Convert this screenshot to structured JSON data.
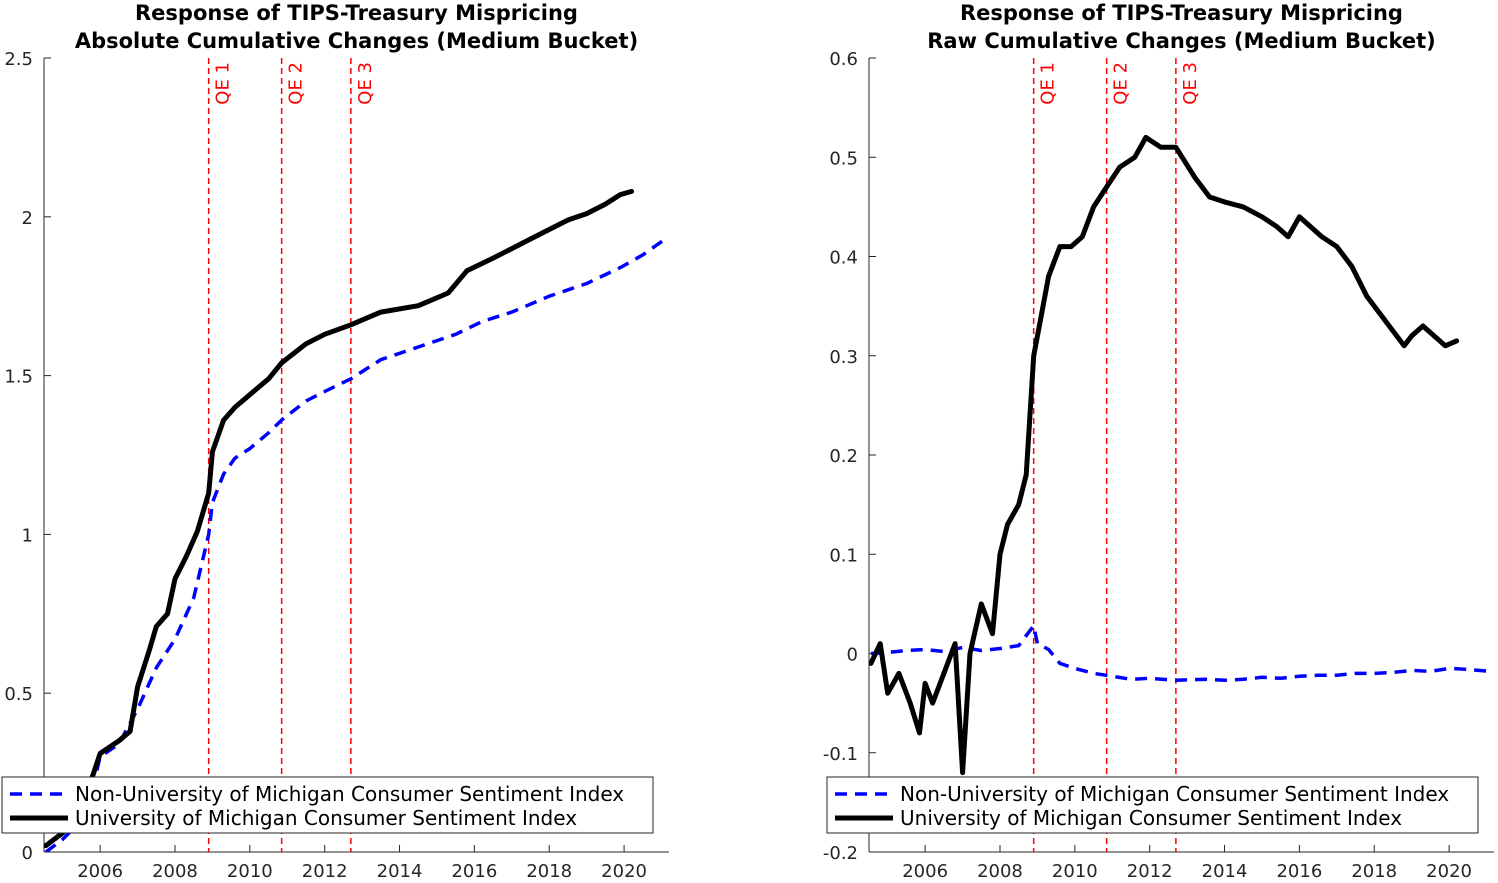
{
  "chart_data": [
    {
      "type": "line",
      "title": [
        "Response of TIPS-Treasury Mispricing",
        "Absolute Cumulative Changes (Medium Bucket)"
      ],
      "xlabel": "",
      "ylabel": "",
      "xlim": [
        2004.5,
        2021.2
      ],
      "ylim": [
        0,
        2.5
      ],
      "xticks": [
        2006,
        2008,
        2010,
        2012,
        2014,
        2016,
        2018,
        2020
      ],
      "yticks": [
        0,
        0.5,
        1,
        1.5,
        2,
        2.5
      ],
      "ytick_labels": [
        "0",
        "0.5",
        "1",
        "1.5",
        "2",
        "2.5"
      ],
      "grid": false,
      "legend": "bottom-left",
      "vlines": [
        {
          "x": 2008.9,
          "label": "QE 1"
        },
        {
          "x": 2010.85,
          "label": "QE 2"
        },
        {
          "x": 2012.7,
          "label": "QE 3"
        }
      ],
      "series": [
        {
          "name": "Non-University of Michigan Consumer Sentiment Index",
          "style": "dashed",
          "color": "#0000ff",
          "x": [
            2004.55,
            2005.0,
            2005.5,
            2005.8,
            2006.0,
            2006.5,
            2007.0,
            2007.5,
            2008.0,
            2008.5,
            2008.9,
            2009.0,
            2009.3,
            2009.6,
            2010.0,
            2010.5,
            2010.85,
            2011.5,
            2012.0,
            2012.7,
            2013.5,
            2014.5,
            2015.5,
            2016.2,
            2017.0,
            2018.0,
            2019.0,
            2019.9,
            2020.5,
            2021.1
          ],
          "y": [
            0.0,
            0.04,
            0.1,
            0.2,
            0.3,
            0.34,
            0.45,
            0.58,
            0.67,
            0.8,
            1.0,
            1.1,
            1.19,
            1.24,
            1.27,
            1.32,
            1.36,
            1.42,
            1.45,
            1.49,
            1.55,
            1.59,
            1.63,
            1.67,
            1.7,
            1.75,
            1.79,
            1.84,
            1.88,
            1.93
          ]
        },
        {
          "name": "University of Michigan Consumer Sentiment Index",
          "style": "solid",
          "color": "#000000",
          "x": [
            2004.55,
            2005.0,
            2005.5,
            2005.8,
            2006.0,
            2006.5,
            2006.8,
            2007.0,
            2007.3,
            2007.5,
            2007.8,
            2008.0,
            2008.3,
            2008.6,
            2008.9,
            2009.0,
            2009.3,
            2009.6,
            2010.0,
            2010.5,
            2010.85,
            2011.5,
            2012.0,
            2012.7,
            2013.5,
            2014.5,
            2015.3,
            2015.8,
            2016.5,
            2017.0,
            2017.5,
            2018.0,
            2018.5,
            2019.0,
            2019.5,
            2019.9,
            2020.2
          ],
          "y": [
            0.02,
            0.06,
            0.16,
            0.24,
            0.31,
            0.35,
            0.38,
            0.52,
            0.63,
            0.71,
            0.75,
            0.86,
            0.93,
            1.01,
            1.13,
            1.26,
            1.36,
            1.4,
            1.44,
            1.49,
            1.54,
            1.6,
            1.63,
            1.66,
            1.7,
            1.72,
            1.76,
            1.83,
            1.87,
            1.9,
            1.93,
            1.96,
            1.99,
            2.01,
            2.04,
            2.07,
            2.08
          ]
        }
      ]
    },
    {
      "type": "line",
      "title": [
        "Response of TIPS-Treasury Mispricing",
        "Raw Cumulative Changes (Medium Bucket)"
      ],
      "xlabel": "",
      "ylabel": "",
      "xlim": [
        2004.5,
        2021.2
      ],
      "ylim": [
        -0.2,
        0.6
      ],
      "xticks": [
        2006,
        2008,
        2010,
        2012,
        2014,
        2016,
        2018,
        2020
      ],
      "yticks": [
        -0.2,
        -0.1,
        0,
        0.1,
        0.2,
        0.3,
        0.4,
        0.5,
        0.6
      ],
      "ytick_labels": [
        "-0.2",
        "-0.1",
        "0",
        "0.1",
        "0.2",
        "0.3",
        "0.4",
        "0.5",
        "0.6"
      ],
      "grid": false,
      "legend": "bottom-left",
      "vlines": [
        {
          "x": 2008.9,
          "label": "QE 1"
        },
        {
          "x": 2010.85,
          "label": "QE 2"
        },
        {
          "x": 2012.7,
          "label": "QE 3"
        }
      ],
      "series": [
        {
          "name": "Non-University of Michigan Consumer Sentiment Index",
          "style": "dashed",
          "color": "#0000ff",
          "x": [
            2004.55,
            2005.0,
            2005.5,
            2006.0,
            2006.5,
            2007.0,
            2007.5,
            2008.0,
            2008.5,
            2008.9,
            2009.0,
            2009.3,
            2009.6,
            2010.0,
            2010.5,
            2010.85,
            2011.5,
            2012.0,
            2012.7,
            2013.5,
            2014.0,
            2014.5,
            2015.0,
            2015.5,
            2016.0,
            2016.5,
            2017.0,
            2017.5,
            2018.0,
            2018.5,
            2019.0,
            2019.5,
            2020.0,
            2020.5,
            2021.1
          ],
          "y": [
            0.0,
            0.001,
            0.003,
            0.004,
            0.002,
            0.006,
            0.003,
            0.005,
            0.008,
            0.028,
            0.01,
            0.004,
            -0.01,
            -0.015,
            -0.02,
            -0.022,
            -0.026,
            -0.025,
            -0.027,
            -0.026,
            -0.027,
            -0.026,
            -0.024,
            -0.025,
            -0.023,
            -0.022,
            -0.022,
            -0.02,
            -0.02,
            -0.019,
            -0.017,
            -0.018,
            -0.015,
            -0.016,
            -0.018
          ]
        },
        {
          "name": "University of Michigan Consumer Sentiment Index",
          "style": "solid",
          "color": "#000000",
          "x": [
            2004.55,
            2004.8,
            2005.0,
            2005.3,
            2005.6,
            2005.85,
            2006.0,
            2006.2,
            2006.5,
            2006.8,
            2007.0,
            2007.2,
            2007.5,
            2007.8,
            2008.0,
            2008.2,
            2008.5,
            2008.7,
            2008.9,
            2009.1,
            2009.3,
            2009.6,
            2009.9,
            2010.2,
            2010.5,
            2010.85,
            2011.2,
            2011.6,
            2011.9,
            2012.3,
            2012.7,
            2013.2,
            2013.6,
            2014.0,
            2014.5,
            2015.0,
            2015.4,
            2015.7,
            2016.0,
            2016.3,
            2016.6,
            2017.0,
            2017.4,
            2017.8,
            2018.2,
            2018.6,
            2018.8,
            2019.0,
            2019.3,
            2019.6,
            2019.9,
            2020.2
          ],
          "y": [
            -0.01,
            0.01,
            -0.04,
            -0.02,
            -0.05,
            -0.08,
            -0.03,
            -0.05,
            -0.02,
            0.01,
            -0.12,
            0.0,
            0.05,
            0.02,
            0.1,
            0.13,
            0.15,
            0.18,
            0.3,
            0.34,
            0.38,
            0.41,
            0.41,
            0.42,
            0.45,
            0.47,
            0.49,
            0.5,
            0.52,
            0.51,
            0.51,
            0.48,
            0.46,
            0.455,
            0.45,
            0.44,
            0.43,
            0.42,
            0.44,
            0.43,
            0.42,
            0.41,
            0.39,
            0.36,
            0.34,
            0.32,
            0.31,
            0.32,
            0.33,
            0.32,
            0.31,
            0.315
          ]
        }
      ]
    }
  ]
}
